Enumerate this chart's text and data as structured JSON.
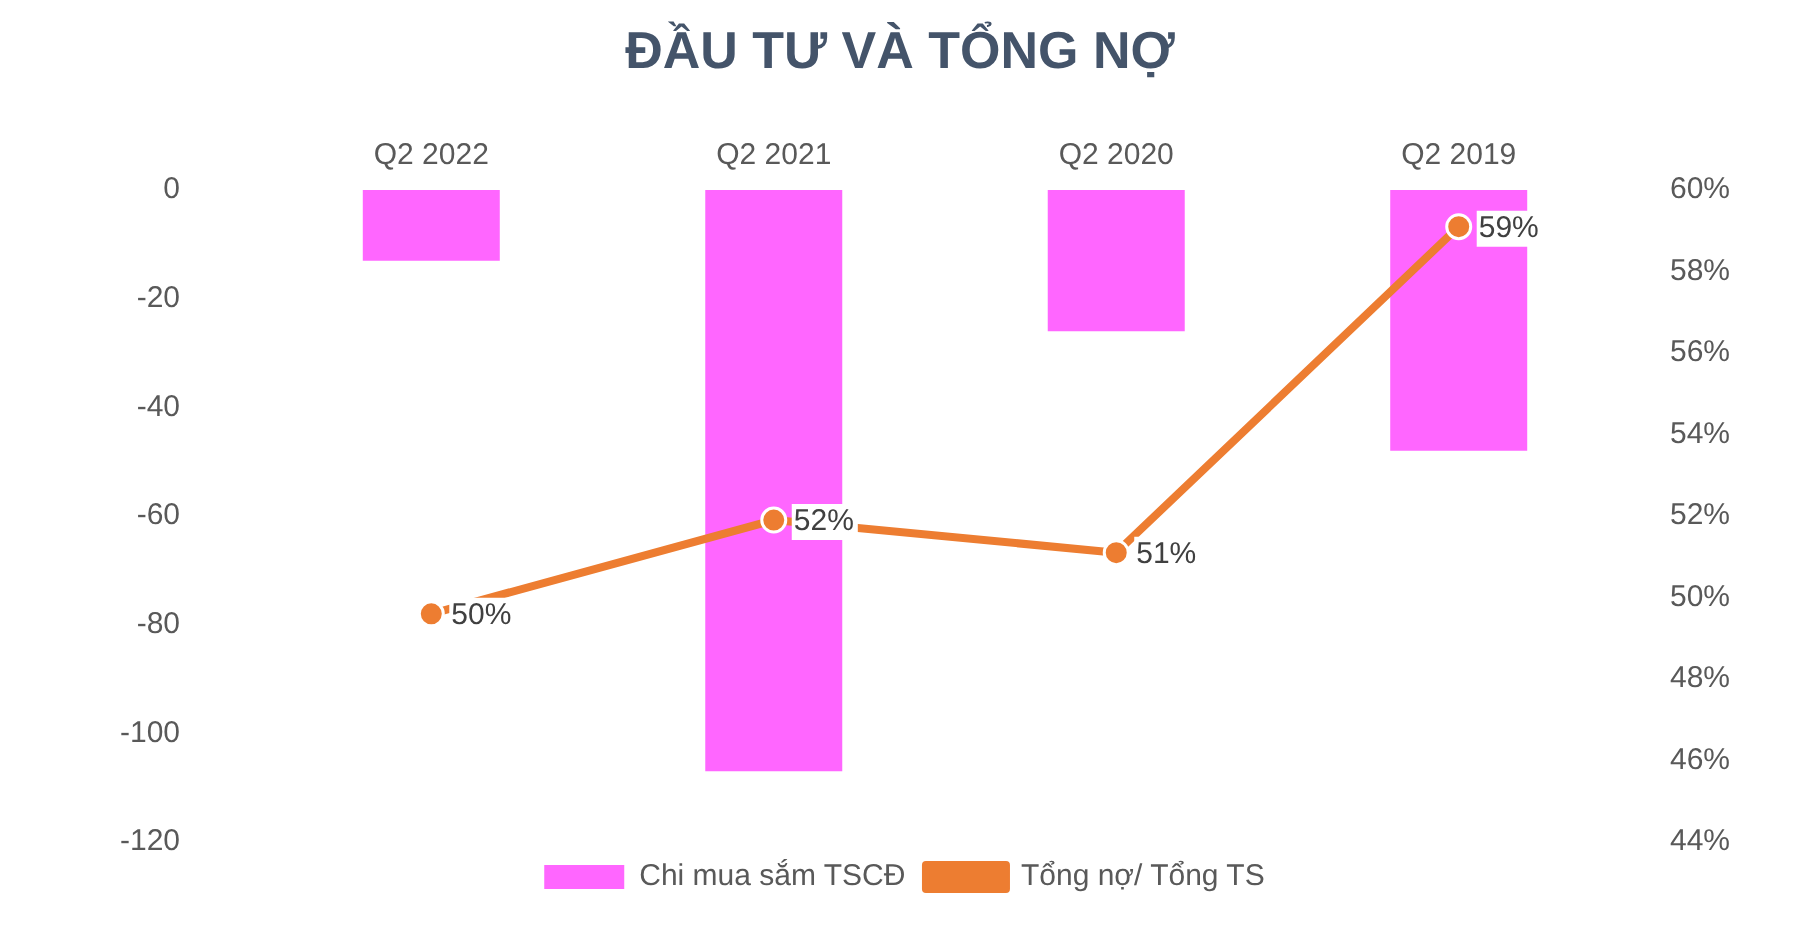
{
  "chart_data": {
    "type": "bar",
    "title": "ĐẦU TƯ VÀ TỔNG NỢ",
    "categories": [
      "Q2 2022",
      "Q2 2021",
      "Q2 2020",
      "Q2 2019"
    ],
    "series": [
      {
        "name": "Chi mua sắm TSCĐ",
        "color": "#ff66ff",
        "values": [
          -13,
          -107,
          -26,
          -48
        ]
      },
      {
        "name": "Tổng nợ/ Tổng TS",
        "type": "line",
        "axis": "y2",
        "color": "#ed7d31",
        "marker": "circle",
        "values": [
          49.6,
          51.9,
          51.1,
          59.1
        ],
        "value_labels": [
          "50%",
          "52%",
          "51%",
          "59%"
        ]
      }
    ],
    "ylim": [
      -120,
      0
    ],
    "yticks": [
      -120,
      -100,
      -80,
      -60,
      -40,
      -20,
      0
    ],
    "y2lim": [
      44,
      60
    ],
    "y2ticks": [
      {
        "value": 44,
        "label": "44%"
      },
      {
        "value": 46,
        "label": "46%"
      },
      {
        "value": 48,
        "label": "48%"
      },
      {
        "value": 50,
        "label": "50%"
      },
      {
        "value": 52,
        "label": "52%"
      },
      {
        "value": 54,
        "label": "54%"
      },
      {
        "value": 56,
        "label": "56%"
      },
      {
        "value": 58,
        "label": "58%"
      },
      {
        "value": 60,
        "label": "60%"
      }
    ],
    "grid": false,
    "legend": "bottom"
  }
}
